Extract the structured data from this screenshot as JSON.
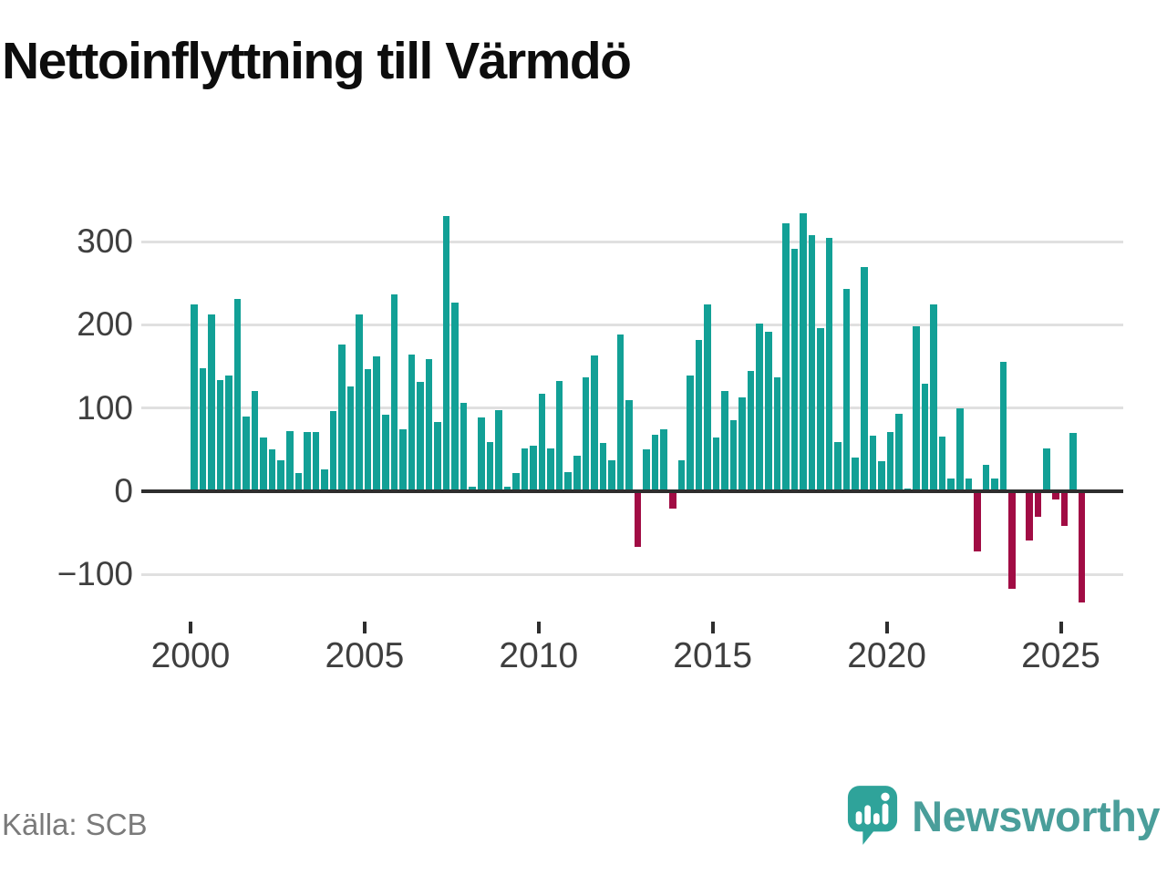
{
  "title": "Nettoinflyttning till Värmdö",
  "source": "Källa: SCB",
  "branding": {
    "name": "Newsworthy"
  },
  "chart_data": {
    "type": "bar",
    "title": "Nettoinflyttning till Värmdö",
    "x_start": "2000-Q1",
    "x_interval": "quarter",
    "x_end": "2025-Q3",
    "series": [
      {
        "name": "Nettoinflyttning",
        "values": [
          224,
          148,
          213,
          134,
          139,
          231,
          90,
          120,
          65,
          50,
          37,
          72,
          22,
          71,
          71,
          26,
          96,
          176,
          126,
          213,
          147,
          162,
          92,
          237,
          74,
          164,
          131,
          159,
          83,
          331,
          227,
          106,
          5,
          89,
          59,
          97,
          6,
          22,
          52,
          55,
          117,
          51,
          132,
          23,
          43,
          137,
          163,
          58,
          37,
          188,
          110,
          -66,
          50,
          68,
          75,
          -20,
          37,
          139,
          182,
          225,
          65,
          120,
          85,
          113,
          145,
          202,
          192,
          137,
          322,
          291,
          334,
          308,
          196,
          304,
          59,
          243,
          40,
          269,
          67,
          36,
          71,
          93,
          3,
          198,
          129,
          225,
          66,
          15,
          100,
          15,
          -71,
          32,
          15,
          155,
          -116,
          0,
          -58,
          -30,
          52,
          -9,
          -41,
          70,
          -133
        ]
      }
    ],
    "y_ticks": [
      300,
      200,
      100,
      0,
      -100
    ],
    "y_tick_labels": [
      "300",
      "200",
      "100",
      "0",
      "−100"
    ],
    "x_ticks": [
      2000,
      2005,
      2010,
      2015,
      2020,
      2025
    ],
    "x_tick_labels": [
      "2000",
      "2005",
      "2010",
      "2015",
      "2020",
      "2025"
    ],
    "ylim": [
      -150,
      360
    ],
    "grid": true,
    "legend": "none",
    "positive_color": "#12a096",
    "negative_color": "#a10c44",
    "zero_line_color": "#2e2e2e",
    "grid_color": "#e0e0e0"
  }
}
